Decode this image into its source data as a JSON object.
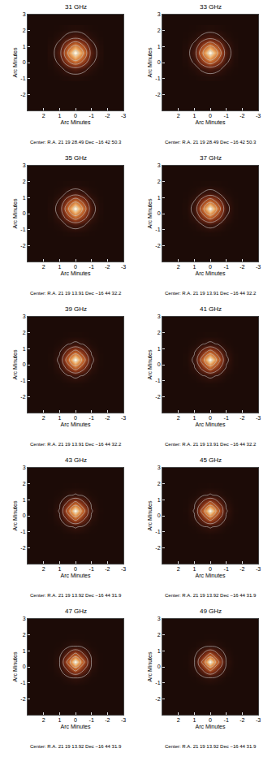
{
  "chart_data": [
    {
      "type": "heatmap",
      "title": "31 GHz",
      "x_label": "Arc Minutes",
      "y_label": "Arc Minutes",
      "annotation": "Center: R.A. 21 19 28.49 Dec −16 42 50.3",
      "xlim": [
        3,
        -3
      ],
      "ylim": [
        -3,
        3
      ],
      "xticks": [
        2,
        1,
        0,
        -1,
        -2,
        -3
      ],
      "yticks": [
        -2,
        -1,
        0,
        1,
        2,
        3
      ],
      "zlim": [
        0,
        1
      ],
      "contours": [
        0.1,
        0.3,
        0.5,
        0.7,
        0.9
      ],
      "x": [
        1.5,
        1,
        0.5,
        0,
        -0.5,
        -1,
        -1.5
      ],
      "y": [
        -0.9,
        -0.4,
        0.1,
        0.6,
        1.1,
        1.6,
        2.1
      ],
      "z": [
        [
          0.001,
          0.008,
          0.024,
          0.035,
          0.024,
          0.008,
          0.001
        ],
        [
          0.008,
          0.051,
          0.156,
          0.226,
          0.156,
          0.051,
          0.008
        ],
        [
          0.024,
          0.156,
          0.476,
          0.69,
          0.476,
          0.156,
          0.024
        ],
        [
          0.035,
          0.226,
          0.69,
          1,
          0.69,
          0.226,
          0.035
        ],
        [
          0.024,
          0.156,
          0.476,
          0.69,
          0.476,
          0.156,
          0.024
        ],
        [
          0.008,
          0.051,
          0.156,
          0.226,
          0.156,
          0.051,
          0.008
        ],
        [
          0.001,
          0.008,
          0.024,
          0.035,
          0.024,
          0.008,
          0.001
        ]
      ]
    },
    {
      "type": "heatmap",
      "title": "33 GHz",
      "x_label": "Arc Minutes",
      "y_label": "Arc Minutes",
      "annotation": "Center: R.A. 21 19 28.49 Dec −16 42 50.3",
      "xlim": [
        3,
        -3
      ],
      "ylim": [
        -3,
        3
      ],
      "xticks": [
        2,
        1,
        0,
        -1,
        -2,
        -3
      ],
      "yticks": [
        -2,
        -1,
        0,
        1,
        2,
        3
      ],
      "zlim": [
        0,
        1
      ],
      "contours": [
        0.1,
        0.3,
        0.5,
        0.7,
        0.9
      ],
      "x": [
        1.5,
        1,
        0.5,
        0,
        -0.5,
        -1,
        -1.5
      ],
      "y": [
        -0.9,
        -0.4,
        0.1,
        0.6,
        1.1,
        1.6,
        2.1
      ],
      "z": [
        [
          0.001,
          0.006,
          0.019,
          0.028,
          0.019,
          0.006,
          0.001
        ],
        [
          0.006,
          0.041,
          0.136,
          0.203,
          0.136,
          0.041,
          0.006
        ],
        [
          0.019,
          0.136,
          0.45,
          0.671,
          0.45,
          0.136,
          0.019
        ],
        [
          0.028,
          0.203,
          0.671,
          1,
          0.671,
          0.203,
          0.028
        ],
        [
          0.019,
          0.136,
          0.45,
          0.671,
          0.45,
          0.136,
          0.019
        ],
        [
          0.006,
          0.041,
          0.136,
          0.203,
          0.136,
          0.041,
          0.006
        ],
        [
          0.001,
          0.006,
          0.019,
          0.028,
          0.019,
          0.006,
          0.001
        ]
      ]
    },
    {
      "type": "heatmap",
      "title": "35 GHz",
      "x_label": "Arc Minutes",
      "y_label": "Arc Minutes",
      "annotation": "Center: R.A. 21 19 13.91 Dec −16 44 32.2",
      "xlim": [
        3,
        -3
      ],
      "ylim": [
        -3,
        3
      ],
      "xticks": [
        2,
        1,
        0,
        -1,
        -2,
        -3
      ],
      "yticks": [
        -2,
        -1,
        0,
        1,
        2,
        3
      ],
      "zlim": [
        0,
        1
      ],
      "contours": [
        0.1,
        0.3,
        0.5,
        0.7,
        0.9
      ],
      "x": [
        1.5,
        1,
        0.5,
        0,
        -0.5,
        -1,
        -1.5
      ],
      "y": [
        -1.2,
        -0.7,
        -0.2,
        0.3,
        0.8,
        1.3,
        1.8
      ],
      "z": [
        [
          0,
          0.004,
          0.014,
          0.021,
          0.014,
          0.004,
          0
        ],
        [
          0.004,
          0.032,
          0.117,
          0.18,
          0.117,
          0.032,
          0.004
        ],
        [
          0.014,
          0.117,
          0.424,
          0.651,
          0.424,
          0.117,
          0.014
        ],
        [
          0.021,
          0.18,
          0.651,
          1,
          0.651,
          0.18,
          0.021
        ],
        [
          0.014,
          0.117,
          0.424,
          0.651,
          0.424,
          0.117,
          0.014
        ],
        [
          0.004,
          0.032,
          0.117,
          0.18,
          0.117,
          0.032,
          0.004
        ],
        [
          0,
          0.004,
          0.014,
          0.021,
          0.014,
          0.004,
          0
        ]
      ]
    },
    {
      "type": "heatmap",
      "title": "37 GHz",
      "x_label": "Arc Minutes",
      "y_label": "Arc Minutes",
      "annotation": "Center: R.A. 21 19 13.91 Dec −16 44 32.2",
      "xlim": [
        3,
        -3
      ],
      "ylim": [
        -3,
        3
      ],
      "xticks": [
        2,
        1,
        0,
        -1,
        -2,
        -3
      ],
      "yticks": [
        -2,
        -1,
        0,
        1,
        2,
        3
      ],
      "zlim": [
        0,
        1
      ],
      "contours": [
        0.1,
        0.3,
        0.5,
        0.7,
        0.9
      ],
      "x": [
        1.5,
        1,
        0.5,
        0,
        -0.5,
        -1,
        -1.5
      ],
      "y": [
        -1.2,
        -0.7,
        -0.2,
        0.3,
        0.8,
        1.3,
        1.8
      ],
      "z": [
        [
          0,
          0.003,
          0.01,
          0.016,
          0.01,
          0.003,
          0
        ],
        [
          0.003,
          0.025,
          0.099,
          0.157,
          0.099,
          0.025,
          0.003
        ],
        [
          0.01,
          0.099,
          0.397,
          0.63,
          0.397,
          0.099,
          0.01
        ],
        [
          0.016,
          0.157,
          0.63,
          1,
          0.63,
          0.157,
          0.016
        ],
        [
          0.01,
          0.099,
          0.397,
          0.63,
          0.397,
          0.099,
          0.01
        ],
        [
          0.003,
          0.025,
          0.099,
          0.157,
          0.099,
          0.025,
          0.003
        ],
        [
          0,
          0.003,
          0.01,
          0.016,
          0.01,
          0.003,
          0
        ]
      ]
    },
    {
      "type": "heatmap",
      "title": "39 GHz",
      "x_label": "Arc Minutes",
      "y_label": "Arc Minutes",
      "annotation": "Center: R.A. 21 19 13.91 Dec −16 44 32.2",
      "xlim": [
        3,
        -3
      ],
      "ylim": [
        -3,
        3
      ],
      "xticks": [
        2,
        1,
        0,
        -1,
        -2,
        -3
      ],
      "yticks": [
        -2,
        -1,
        0,
        1,
        2,
        3
      ],
      "zlim": [
        0,
        1
      ],
      "contours": [
        0.1,
        0.3,
        0.5,
        0.7,
        0.9
      ],
      "x": [
        1.5,
        1,
        0.5,
        0,
        -0.5,
        -1,
        -1.5
      ],
      "y": [
        -1.2,
        -0.7,
        -0.2,
        0.3,
        0.8,
        1.3,
        1.8
      ],
      "z": [
        [
          0,
          0.001,
          0.007,
          0.011,
          0.007,
          0.001,
          0
        ],
        [
          0.001,
          0.018,
          0.082,
          0.135,
          0.082,
          0.018,
          0.001
        ],
        [
          0.007,
          0.082,
          0.368,
          0.607,
          0.368,
          0.082,
          0.007
        ],
        [
          0.011,
          0.135,
          0.607,
          1,
          0.607,
          0.135,
          0.011
        ],
        [
          0.007,
          0.082,
          0.368,
          0.607,
          0.368,
          0.082,
          0.007
        ],
        [
          0.001,
          0.018,
          0.082,
          0.135,
          0.082,
          0.018,
          0.001
        ],
        [
          0,
          0.001,
          0.007,
          0.011,
          0.007,
          0.001,
          0
        ]
      ]
    },
    {
      "type": "heatmap",
      "title": "41 GHz",
      "x_label": "Arc Minutes",
      "y_label": "Arc Minutes",
      "annotation": "Center: R.A. 21 19 13.91 Dec −16 44 32.2",
      "xlim": [
        3,
        -3
      ],
      "ylim": [
        -3,
        3
      ],
      "xticks": [
        2,
        1,
        0,
        -1,
        -2,
        -3
      ],
      "yticks": [
        -2,
        -1,
        0,
        1,
        2,
        3
      ],
      "zlim": [
        0,
        1
      ],
      "contours": [
        0.1,
        0.3,
        0.5,
        0.7,
        0.9
      ],
      "x": [
        1.5,
        1,
        0.5,
        0,
        -0.5,
        -1,
        -1.5
      ],
      "y": [
        -1.2,
        -0.7,
        -0.2,
        0.3,
        0.8,
        1.3,
        1.8
      ],
      "z": [
        [
          0,
          0.001,
          0.007,
          0.011,
          0.007,
          0.001,
          0
        ],
        [
          0.001,
          0.018,
          0.082,
          0.135,
          0.082,
          0.018,
          0.001
        ],
        [
          0.007,
          0.082,
          0.368,
          0.607,
          0.368,
          0.082,
          0.007
        ],
        [
          0.011,
          0.135,
          0.607,
          1,
          0.607,
          0.135,
          0.011
        ],
        [
          0.007,
          0.082,
          0.368,
          0.607,
          0.368,
          0.082,
          0.007
        ],
        [
          0.001,
          0.018,
          0.082,
          0.135,
          0.082,
          0.018,
          0.001
        ],
        [
          0,
          0.001,
          0.007,
          0.011,
          0.007,
          0.001,
          0
        ]
      ]
    },
    {
      "type": "heatmap",
      "title": "43 GHz",
      "x_label": "Arc Minutes",
      "y_label": "Arc Minutes",
      "annotation": "Center: R.A. 21 19 13.92 Dec −16 44 31.9",
      "xlim": [
        3,
        -3
      ],
      "ylim": [
        -3,
        3
      ],
      "xticks": [
        2,
        1,
        0,
        -1,
        -2,
        -3
      ],
      "yticks": [
        -2,
        -1,
        0,
        1,
        2,
        3
      ],
      "zlim": [
        0,
        1
      ],
      "contours": [
        0.1,
        0.3,
        0.5,
        0.7,
        0.9
      ],
      "x": [
        1.5,
        1,
        0.5,
        0,
        -0.5,
        -1,
        -1.5
      ],
      "y": [
        -1.2,
        -0.7,
        -0.2,
        0.3,
        0.8,
        1.3,
        1.8
      ],
      "z": [
        [
          0,
          0.001,
          0.005,
          0.008,
          0.005,
          0.001,
          0
        ],
        [
          0.001,
          0.013,
          0.066,
          0.114,
          0.066,
          0.013,
          0.001
        ],
        [
          0.005,
          0.066,
          0.338,
          0.581,
          0.338,
          0.066,
          0.005
        ],
        [
          0.008,
          0.114,
          0.581,
          1,
          0.581,
          0.114,
          0.008
        ],
        [
          0.005,
          0.066,
          0.338,
          0.581,
          0.338,
          0.066,
          0.005
        ],
        [
          0.001,
          0.013,
          0.066,
          0.114,
          0.066,
          0.013,
          0.001
        ],
        [
          0,
          0.001,
          0.005,
          0.008,
          0.005,
          0.001,
          0
        ]
      ]
    },
    {
      "type": "heatmap",
      "title": "45 GHz",
      "x_label": "Arc Minutes",
      "y_label": "Arc Minutes",
      "annotation": "Center: R.A. 21 19 13.92 Dec −16 44 31.9",
      "xlim": [
        3,
        -3
      ],
      "ylim": [
        -3,
        3
      ],
      "xticks": [
        2,
        1,
        0,
        -1,
        -2,
        -3
      ],
      "yticks": [
        -2,
        -1,
        0,
        1,
        2,
        3
      ],
      "zlim": [
        0,
        1
      ],
      "contours": [
        0.1,
        0.3,
        0.5,
        0.7,
        0.9
      ],
      "x": [
        1.5,
        1,
        0.5,
        0,
        -0.5,
        -1,
        -1.5
      ],
      "y": [
        -1.2,
        -0.7,
        -0.2,
        0.3,
        0.8,
        1.3,
        1.8
      ],
      "z": [
        [
          0,
          0.001,
          0.005,
          0.008,
          0.005,
          0.001,
          0
        ],
        [
          0.001,
          0.013,
          0.066,
          0.114,
          0.066,
          0.013,
          0.001
        ],
        [
          0.005,
          0.066,
          0.338,
          0.581,
          0.338,
          0.066,
          0.005
        ],
        [
          0.008,
          0.114,
          0.581,
          1,
          0.581,
          0.114,
          0.008
        ],
        [
          0.005,
          0.066,
          0.338,
          0.581,
          0.338,
          0.066,
          0.005
        ],
        [
          0.001,
          0.013,
          0.066,
          0.114,
          0.066,
          0.013,
          0.001
        ],
        [
          0,
          0.001,
          0.005,
          0.008,
          0.005,
          0.001,
          0
        ]
      ]
    },
    {
      "type": "heatmap",
      "title": "47 GHz",
      "x_label": "Arc Minutes",
      "y_label": "Arc Minutes",
      "annotation": "Center: R.A. 21 19 13.92 Dec −16 44 31.9",
      "xlim": [
        3,
        -3
      ],
      "ylim": [
        -3,
        3
      ],
      "xticks": [
        2,
        1,
        0,
        -1,
        -2,
        -3
      ],
      "yticks": [
        -2,
        -1,
        0,
        1,
        2,
        3
      ],
      "zlim": [
        0,
        1
      ],
      "contours": [
        0.1,
        0.3,
        0.5,
        0.7,
        0.9
      ],
      "x": [
        1.5,
        1,
        0.5,
        0,
        -0.5,
        -1,
        -1.5
      ],
      "y": [
        -1.2,
        -0.7,
        -0.2,
        0.3,
        0.8,
        1.3,
        1.8
      ],
      "z": [
        [
          0,
          0,
          0.003,
          0.005,
          0.003,
          0,
          0
        ],
        [
          0,
          0.009,
          0.052,
          0.094,
          0.052,
          0.009,
          0
        ],
        [
          0.003,
          0.052,
          0.307,
          0.554,
          0.307,
          0.052,
          0.003
        ],
        [
          0.005,
          0.094,
          0.554,
          1,
          0.554,
          0.094,
          0.005
        ],
        [
          0.003,
          0.052,
          0.307,
          0.554,
          0.307,
          0.052,
          0.003
        ],
        [
          0,
          0.009,
          0.052,
          0.094,
          0.052,
          0.009,
          0
        ],
        [
          0,
          0,
          0.003,
          0.005,
          0.003,
          0,
          0
        ]
      ]
    },
    {
      "type": "heatmap",
      "title": "49 GHz",
      "x_label": "Arc Minutes",
      "y_label": "Arc Minutes",
      "annotation": "Center: R.A. 21 19 13.92 Dec −16 44 31.9",
      "xlim": [
        3,
        -3
      ],
      "ylim": [
        -3,
        3
      ],
      "xticks": [
        2,
        1,
        0,
        -1,
        -2,
        -3
      ],
      "yticks": [
        -2,
        -1,
        0,
        1,
        2,
        3
      ],
      "zlim": [
        0,
        1
      ],
      "contours": [
        0.1,
        0.3,
        0.5,
        0.7,
        0.9
      ],
      "x": [
        1.5,
        1,
        0.5,
        0,
        -0.5,
        -1,
        -1.5
      ],
      "y": [
        -1.2,
        -0.7,
        -0.2,
        0.3,
        0.8,
        1.3,
        1.8
      ],
      "z": [
        [
          0,
          0,
          0.002,
          0.004,
          0.002,
          0,
          0
        ],
        [
          0,
          0.007,
          0.046,
          0.085,
          0.046,
          0.007,
          0
        ],
        [
          0.002,
          0.046,
          0.292,
          0.54,
          0.292,
          0.046,
          0.002
        ],
        [
          0.004,
          0.085,
          0.54,
          1,
          0.54,
          0.085,
          0.004
        ],
        [
          0.002,
          0.046,
          0.292,
          0.54,
          0.292,
          0.046,
          0.002
        ],
        [
          0,
          0.007,
          0.046,
          0.085,
          0.046,
          0.007,
          0
        ],
        [
          0,
          0,
          0.002,
          0.004,
          0.002,
          0,
          0
        ]
      ]
    }
  ]
}
